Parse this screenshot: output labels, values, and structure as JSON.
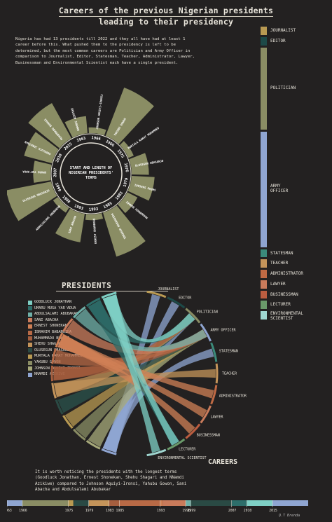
{
  "title_line1": "Careers of the previous Nigerian presidents",
  "title_line2": "leading to their presidency",
  "intro": "Nigeria has had 13 presidents till 2022 and they all have had at least 1 career before this. What pushed them to the presidency is left to be determined, but the most common careers are Politician and Army Officer in comparison to Journalist, Editor, Statesman, Teacher, Administrator, Lawyer, Businessman and Environmental Scientist each have a single president.",
  "center_label": "START AND LENGTH OF NIGERIAN PRESIDENTS' TERMS",
  "presidents_title": "PRESIDENTS",
  "careers_title": "CAREERS",
  "outro": "It is worth noticing the presidents with the longest terms (Goodluck Jonathan, Ernest Shonekan, Shehu Shagari and NNamdi Azikiwe) compared to Johnson Aquiyi-Ironsi, Yahubu Gowon, Sani Abacha and Abdulsalami Abubakar",
  "credit": "Q.T Brenda",
  "colors": {
    "background": "#232121",
    "radial_bar": "#8a8d64",
    "radial_ring": "#e8e4da"
  },
  "career_legend": [
    {
      "label": "JOURNALIST",
      "color": "#b99a52",
      "weight": 1
    },
    {
      "label": "EDITOR",
      "color": "#1d4a48",
      "weight": 1
    },
    {
      "label": "POLITICIAN",
      "color": "#8a8d64",
      "weight": 10
    },
    {
      "label": "ARMY OFFICER",
      "color": "#8fa5d1",
      "weight": 14
    },
    {
      "label": "STATESMAN",
      "color": "#3b8a7a",
      "weight": 1
    },
    {
      "label": "TEACHER",
      "color": "#c4945a",
      "weight": 1
    },
    {
      "label": "ADMINISTRATOR",
      "color": "#c06a44",
      "weight": 1
    },
    {
      "label": "LAWYER",
      "color": "#c97b5b",
      "weight": 1
    },
    {
      "label": "BUSINESSMAN",
      "color": "#bb5d40",
      "weight": 1
    },
    {
      "label": "LECTURER",
      "color": "#6a9a6a",
      "weight": 1
    },
    {
      "label": "ENVIRONMENTAL SCIENTIST",
      "color": "#9fd6d0",
      "weight": 1
    }
  ],
  "presidents_legend": [
    {
      "label": "GOODLUCK JONATHAN",
      "color": "#7fd0c5"
    },
    {
      "label": "UMARU MUSA YAR'ADUA",
      "color": "#2d6e6a"
    },
    {
      "label": "ABDULSALAMI ABUBAKAR",
      "color": "#6fb0a8"
    },
    {
      "label": "SANI ABACHA",
      "color": "#c97b5b"
    },
    {
      "label": "ERNEST SHONEKAN",
      "color": "#d08055"
    },
    {
      "label": "IBRAHIM BABANGIDA",
      "color": "#b86a46"
    },
    {
      "label": "MUHAMMADU BUHARI",
      "color": "#a55e3e"
    },
    {
      "label": "SHEHU SHAGARI",
      "color": "#c4945a"
    },
    {
      "label": "OLUSEGUN OBASANJO",
      "color": "#2a4a44"
    },
    {
      "label": "MURTALA RAMAT MOHAMMED",
      "color": "#b99a52"
    },
    {
      "label": "YAKUBU GOWON",
      "color": "#8a8d64"
    },
    {
      "label": "JOHNSON AGUIYI-IRONSI",
      "color": "#a7a97a"
    },
    {
      "label": "NNAMDI AZIKIWE",
      "color": "#8fa5d1"
    }
  ],
  "chord_careers": [
    {
      "label": "JOURNALIST",
      "color": "#b99a52"
    },
    {
      "label": "EDITOR",
      "color": "#1d4a48"
    },
    {
      "label": "POLITICIAN",
      "color": "#8a8d64"
    },
    {
      "label": "ARMY OFFICER",
      "color": "#8fa5d1"
    },
    {
      "label": "STATESMAN",
      "color": "#3b8a7a"
    },
    {
      "label": "TEACHER",
      "color": "#c4945a"
    },
    {
      "label": "ADMINISTRATOR",
      "color": "#c06a44"
    },
    {
      "label": "LAWYER",
      "color": "#c97b5b"
    },
    {
      "label": "BUSINESSMAN",
      "color": "#bb5d40"
    },
    {
      "label": "LECTURER",
      "color": "#6a9a6a"
    },
    {
      "label": "ENVIRONMENTAL SCIENTIST",
      "color": "#9fd6d0"
    }
  ],
  "chart_data": [
    {
      "type": "bar",
      "subtype": "radial",
      "title": "START AND LENGTH OF NIGERIAN PRESIDENTS' TERMS",
      "categories": [
        "NNAMDI AZIKIWE",
        "JOHNSON AGUIYI-IRONSI",
        "YAKUBU GOWON",
        "MURTALA RAMAT MOHAMMED",
        "OLUSEGUN OBASANJO",
        "SHEHU SHAGARI",
        "MUHAMMADU BUHARI",
        "IBRAHIM BABANGIDA",
        "ERNEST SHONEKAN",
        "SANI ABACHA",
        "ABDULSALAMI ABUBAKAR",
        "OLUSEGUN OBASANJO",
        "UMARU MUSA YAR'ADUA",
        "GOODLUCK JONATHAN",
        "MUHAMMADU BUHARI"
      ],
      "start_years": [
        "1963",
        "1966",
        "1966",
        "1975",
        "1976",
        "1979",
        "1983",
        "1985",
        "1993",
        "1993",
        "1998",
        "1999",
        "2007",
        "2010",
        "2015"
      ],
      "values": [
        3,
        1,
        9,
        1,
        3,
        4,
        2,
        8,
        1,
        5,
        1,
        8,
        3,
        5,
        7
      ],
      "bar_labels": [
        "NNAMDI AZIKIWE",
        "JOHNSON AGUIYI-IRONSI",
        "YAKUBU GOWON",
        "MURTALA RAMAT MOHAMMED",
        "OLUSEGUN OBASANJO",
        "SHEHU SHAGARI",
        "MUHAMMADU BUHARI",
        "IBRAHIM BABANGIDA",
        "ERNEST SHONEKAN",
        "SANI ABACHA",
        "ABDULSALAMI ABUBAKAR",
        "OLUSEGUN OBASANJO",
        "UMARU YAR'ADUA",
        "GOODLUCK JONATHAN",
        "MUHAMMADU BUHARI"
      ]
    },
    {
      "type": "chord",
      "nodes_left": [
        "GOODLUCK JONATHAN",
        "UMARU MUSA YAR'ADUA",
        "ABDULSALAMI ABUBAKAR",
        "SANI ABACHA",
        "ERNEST SHONEKAN",
        "IBRAHIM BABANGIDA",
        "MUHAMMADU BUHARI",
        "SHEHU SHAGARI",
        "OLUSEGUN OBASANJO",
        "MURTALA RAMAT MOHAMMED",
        "YAKUBU GOWON",
        "JOHNSON AGUIYI-IRONSI",
        "NNAMDI AZIKIWE"
      ],
      "nodes_right": [
        "JOURNALIST",
        "EDITOR",
        "POLITICIAN",
        "ARMY OFFICER",
        "STATESMAN",
        "TEACHER",
        "ADMINISTRATOR",
        "LAWYER",
        "BUSINESSMAN",
        "LECTURER",
        "ENVIRONMENTAL SCIENTIST"
      ],
      "links": [
        {
          "source": "NNAMDI AZIKIWE",
          "target": "JOURNALIST"
        },
        {
          "source": "NNAMDI AZIKIWE",
          "target": "EDITOR"
        },
        {
          "source": "NNAMDI AZIKIWE",
          "target": "POLITICIAN"
        },
        {
          "source": "NNAMDI AZIKIWE",
          "target": "STATESMAN"
        },
        {
          "source": "JOHNSON AGUIYI-IRONSI",
          "target": "ARMY OFFICER"
        },
        {
          "source": "YAKUBU GOWON",
          "target": "ARMY OFFICER"
        },
        {
          "source": "MURTALA RAMAT MOHAMMED",
          "target": "ARMY OFFICER"
        },
        {
          "source": "OLUSEGUN OBASANJO",
          "target": "ARMY OFFICER"
        },
        {
          "source": "OLUSEGUN OBASANJO",
          "target": "POLITICIAN"
        },
        {
          "source": "SHEHU SHAGARI",
          "target": "TEACHER"
        },
        {
          "source": "SHEHU SHAGARI",
          "target": "POLITICIAN"
        },
        {
          "source": "MUHAMMADU BUHARI",
          "target": "ARMY OFFICER"
        },
        {
          "source": "MUHAMMADU BUHARI",
          "target": "POLITICIAN"
        },
        {
          "source": "IBRAHIM BABANGIDA",
          "target": "ARMY OFFICER"
        },
        {
          "source": "ERNEST SHONEKAN",
          "target": "LAWYER"
        },
        {
          "source": "ERNEST SHONEKAN",
          "target": "BUSINESSMAN"
        },
        {
          "source": "ERNEST SHONEKAN",
          "target": "ADMINISTRATOR"
        },
        {
          "source": "SANI ABACHA",
          "target": "ARMY OFFICER"
        },
        {
          "source": "ABDULSALAMI ABUBAKAR",
          "target": "ARMY OFFICER"
        },
        {
          "source": "UMARU MUSA YAR'ADUA",
          "target": "POLITICIAN"
        },
        {
          "source": "UMARU MUSA YAR'ADUA",
          "target": "LECTURER"
        },
        {
          "source": "GOODLUCK JONATHAN",
          "target": "ENVIRONMENTAL SCIENTIST"
        },
        {
          "source": "GOODLUCK JONATHAN",
          "target": "POLITICIAN"
        },
        {
          "source": "GOODLUCK JONATHAN",
          "target": "LECTURER"
        }
      ]
    },
    {
      "type": "bar",
      "subtype": "timeline",
      "x_ticks": [
        "1963",
        "1966",
        "1975",
        "1979",
        "1983",
        "1985",
        "1993",
        "1998",
        "1999",
        "2007",
        "2010",
        "2015"
      ],
      "segments": [
        {
          "start": 1963,
          "end": 1966,
          "color": "#8fa5d1"
        },
        {
          "start": 1966,
          "end": 1975,
          "color": "#8a8d64"
        },
        {
          "start": 1975,
          "end": 1976,
          "color": "#b99a52"
        },
        {
          "start": 1976,
          "end": 1979,
          "color": "#2a4a44"
        },
        {
          "start": 1979,
          "end": 1983,
          "color": "#c4945a"
        },
        {
          "start": 1983,
          "end": 1985,
          "color": "#a55e3e"
        },
        {
          "start": 1985,
          "end": 1993,
          "color": "#b86a46"
        },
        {
          "start": 1993,
          "end": 1993.5,
          "color": "#d08055"
        },
        {
          "start": 1993.5,
          "end": 1998,
          "color": "#c97b5b"
        },
        {
          "start": 1998,
          "end": 1999,
          "color": "#6fb0a8"
        },
        {
          "start": 1999,
          "end": 2007,
          "color": "#2a4a44"
        },
        {
          "start": 2007,
          "end": 2010,
          "color": "#2d6e6a"
        },
        {
          "start": 2010,
          "end": 2015,
          "color": "#7fd0c5"
        },
        {
          "start": 2015,
          "end": 2022,
          "color": "#8fa5d1"
        }
      ],
      "xlim": [
        1963,
        2022
      ]
    }
  ]
}
